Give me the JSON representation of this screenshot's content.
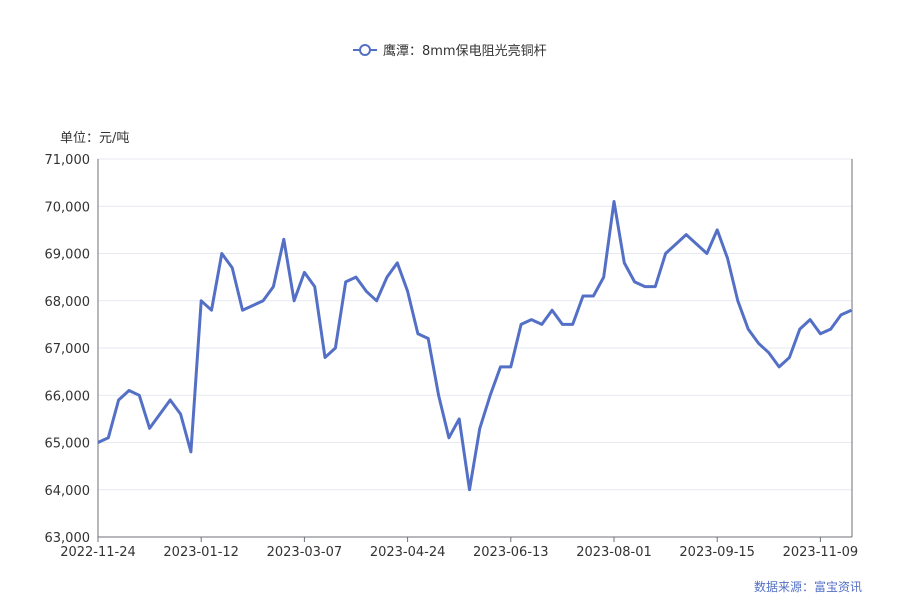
{
  "chart_data": {
    "type": "line",
    "y_axis_label": "单位：元/吨",
    "source": "数据来源：富宝资讯",
    "categories": [
      "2022-11-24",
      null,
      null,
      null,
      null,
      null,
      null,
      null,
      null,
      null,
      "2023-01-12",
      null,
      null,
      null,
      null,
      null,
      null,
      null,
      null,
      null,
      "2023-03-07",
      null,
      null,
      null,
      null,
      null,
      null,
      null,
      null,
      null,
      "2023-04-24",
      null,
      null,
      null,
      null,
      null,
      null,
      null,
      null,
      null,
      "2023-06-13",
      null,
      null,
      null,
      null,
      null,
      null,
      null,
      null,
      null,
      "2023-08-01",
      null,
      null,
      null,
      null,
      null,
      null,
      null,
      null,
      null,
      "2023-09-15",
      null,
      null,
      null,
      null,
      null,
      null,
      null,
      null,
      null,
      "2023-11-09",
      null,
      null,
      null
    ],
    "series": [
      {
        "name": "鹰潭：8mm保电阻光亮铜杆",
        "color": "#5470c6",
        "values": [
          65000,
          65100,
          65900,
          66100,
          66000,
          65300,
          65600,
          65900,
          65600,
          64800,
          68000,
          67800,
          69000,
          68700,
          67800,
          67900,
          68000,
          68300,
          69300,
          68000,
          68600,
          68300,
          66800,
          67000,
          68400,
          68500,
          68200,
          68000,
          68500,
          68800,
          68200,
          67300,
          67200,
          66000,
          65100,
          65500,
          64000,
          65300,
          66000,
          66600,
          66600,
          67500,
          67600,
          67500,
          67800,
          67500,
          67500,
          68100,
          68100,
          68500,
          70100,
          68800,
          68400,
          68300,
          68300,
          69000,
          69200,
          69400,
          69200,
          69000,
          69500,
          68900,
          68000,
          67400,
          67100,
          66900,
          66600,
          66800,
          67400,
          67600,
          67300,
          67400,
          67700,
          67800
        ]
      }
    ],
    "ylim": [
      63000,
      71000
    ],
    "yticks": [
      {
        "value": 63000,
        "label": "63,000"
      },
      {
        "value": 64000,
        "label": "64,000"
      },
      {
        "value": 65000,
        "label": "65,000"
      },
      {
        "value": 66000,
        "label": "66,000"
      },
      {
        "value": 67000,
        "label": "67,000"
      },
      {
        "value": 68000,
        "label": "68,000"
      },
      {
        "value": 69000,
        "label": "69,000"
      },
      {
        "value": 70000,
        "label": "70,000"
      },
      {
        "value": 71000,
        "label": "71,000"
      }
    ],
    "grid": true
  }
}
